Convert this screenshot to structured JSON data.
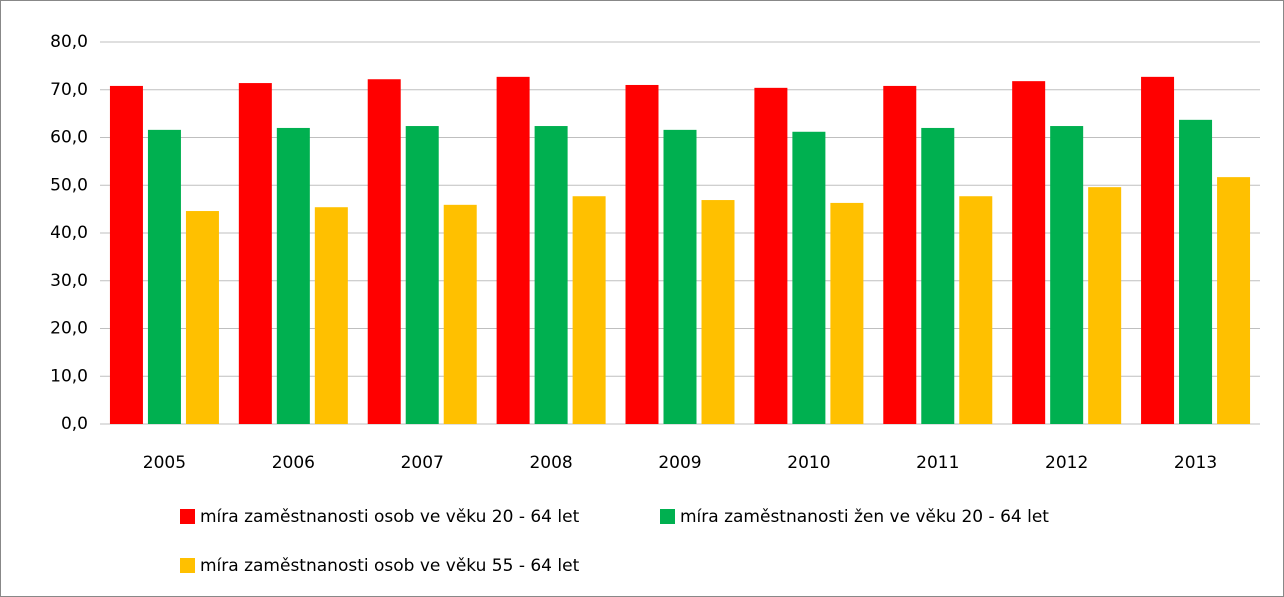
{
  "chart_data": {
    "type": "bar",
    "categories": [
      "2005",
      "2006",
      "2007",
      "2008",
      "2009",
      "2010",
      "2011",
      "2012",
      "2013"
    ],
    "series": [
      {
        "name": "míra zaměstnanosti osob ve věku 20 - 64 let",
        "color": "#ff0000",
        "values": [
          70.8,
          71.4,
          72.2,
          72.7,
          71.0,
          70.4,
          70.8,
          71.8,
          72.7
        ]
      },
      {
        "name": "míra zaměstnanosti žen ve věku 20 - 64 let",
        "color": "#00b050",
        "values": [
          61.6,
          62.0,
          62.4,
          62.4,
          61.6,
          61.2,
          62.0,
          62.4,
          63.7
        ]
      },
      {
        "name": "míra zaměstnanosti osob ve věku 55 - 64 let",
        "color": "#ffc000",
        "values": [
          44.6,
          45.4,
          45.9,
          47.7,
          46.9,
          46.3,
          47.7,
          49.6,
          51.7
        ]
      }
    ],
    "ylim": [
      0,
      80
    ],
    "yticks": [
      {
        "value": 0,
        "label": "0,0"
      },
      {
        "value": 10,
        "label": "10,0"
      },
      {
        "value": 20,
        "label": "20,0"
      },
      {
        "value": 30,
        "label": "30,0"
      },
      {
        "value": 40,
        "label": "40,0"
      },
      {
        "value": 50,
        "label": "50,0"
      },
      {
        "value": 60,
        "label": "60,0"
      },
      {
        "value": 70,
        "label": "70,0"
      },
      {
        "value": 80,
        "label": "80,0"
      }
    ],
    "grid": true
  }
}
